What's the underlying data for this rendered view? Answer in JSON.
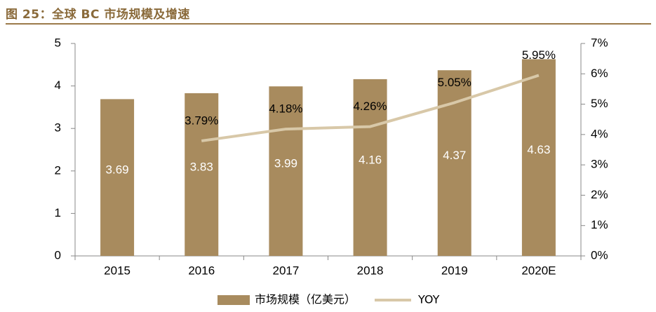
{
  "title": "图 25：全球 BC 市场规模及增速",
  "colors": {
    "bar": "#a88b5e",
    "line": "#d8c8a8",
    "title": "#8a6a3a",
    "axis": "#888888"
  },
  "chart_data": {
    "type": "bar",
    "categories": [
      "2015",
      "2016",
      "2017",
      "2018",
      "2019",
      "2020E"
    ],
    "series": [
      {
        "name": "市场规模（亿美元）",
        "type": "bar",
        "axis": "left",
        "values": [
          3.69,
          3.83,
          3.99,
          4.16,
          4.37,
          4.63
        ],
        "labels": [
          "3.69",
          "3.83",
          "3.99",
          "4.16",
          "4.37",
          "4.63"
        ]
      },
      {
        "name": "YOY",
        "type": "line",
        "axis": "right",
        "values": [
          null,
          3.79,
          4.18,
          4.26,
          5.05,
          5.95
        ],
        "labels": [
          "",
          "3.79%",
          "4.18%",
          "4.26%",
          "5.05%",
          "5.95%"
        ]
      }
    ],
    "y_left": {
      "ylim": [
        0,
        5
      ],
      "ticks": [
        "0",
        "1",
        "2",
        "3",
        "4",
        "5"
      ]
    },
    "y_right": {
      "ylim": [
        0,
        7
      ],
      "ticks": [
        "0%",
        "1%",
        "2%",
        "3%",
        "4%",
        "5%",
        "6%",
        "7%"
      ]
    },
    "legend_position": "bottom",
    "grid": false
  }
}
